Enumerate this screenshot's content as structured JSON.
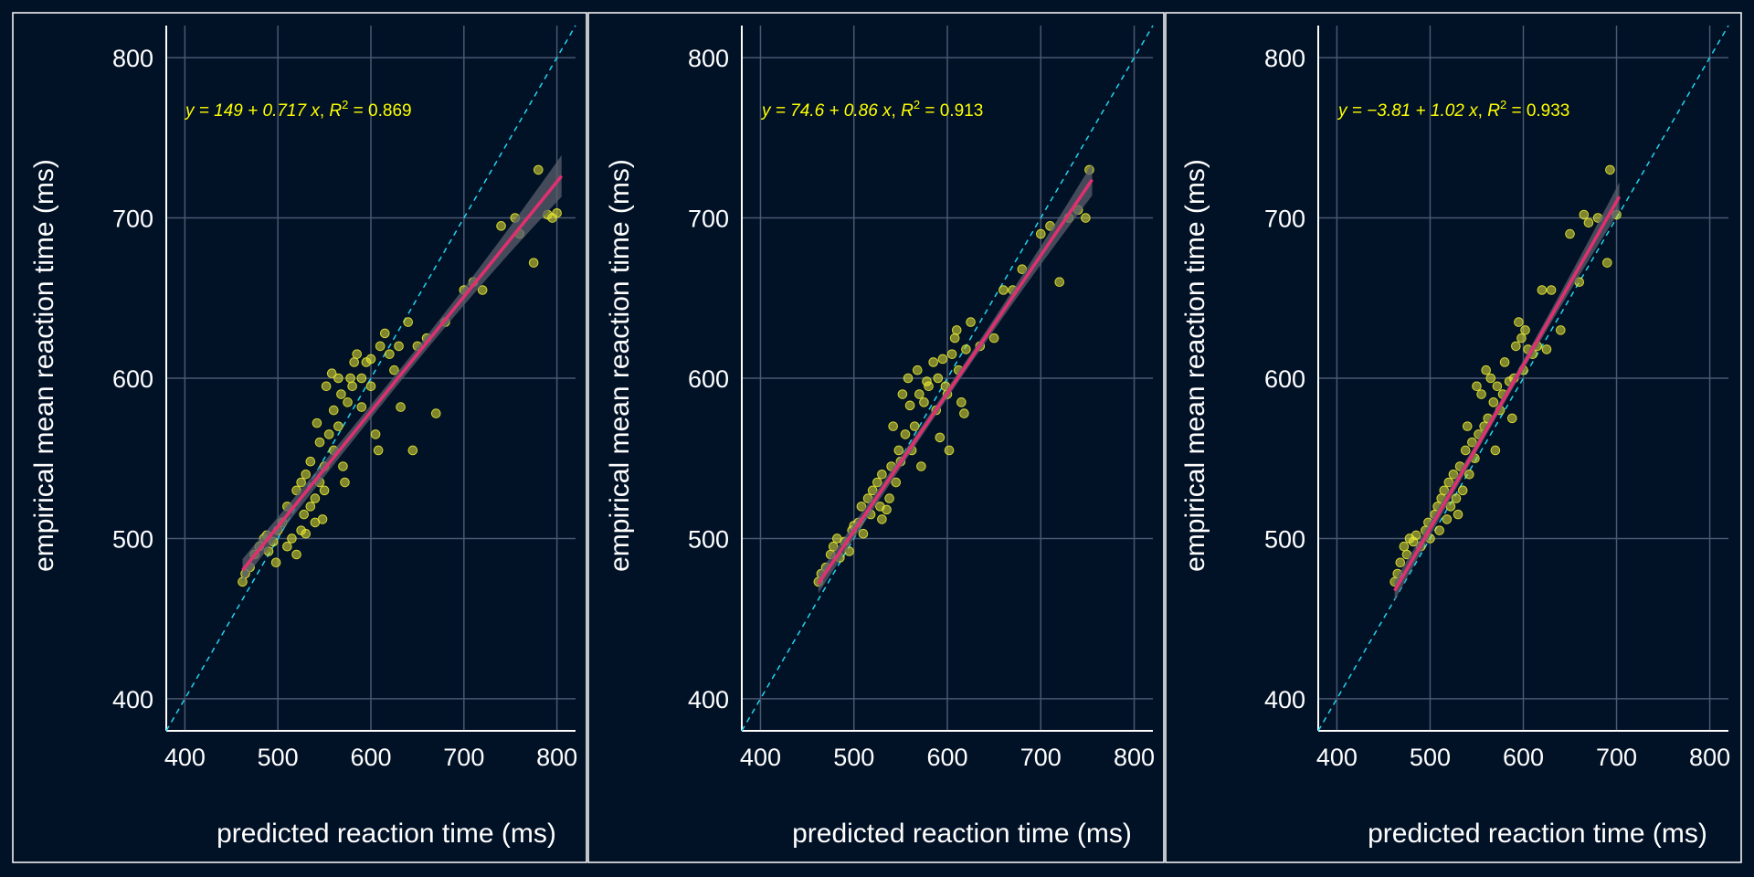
{
  "colors": {
    "background": "#011126",
    "border": "#ffffff",
    "grid": "#4a5870",
    "axis": "#ffffff",
    "text": "#ffffff",
    "points": "#e6e632",
    "fit_line": "#e0306f",
    "confidence_band": "#5a5f6e",
    "identity_line": "#22d3ee",
    "equation": "#ffff00"
  },
  "chart_data": [
    {
      "type": "scatter",
      "xlabel": "predicted reaction time (ms)",
      "ylabel": "empirical mean reaction time (ms)",
      "xlim": [
        380,
        820
      ],
      "ylim": [
        380,
        820
      ],
      "xticks": [
        400,
        500,
        600,
        700,
        800
      ],
      "yticks": [
        400,
        500,
        600,
        700,
        800
      ],
      "grid": true,
      "equation": {
        "prefix": "y = 149 + 0.717 ",
        "var": "x",
        "r2_label": "R",
        "r2_exp": "2",
        "r2_value": " = 0.869"
      },
      "fit": {
        "intercept": 149,
        "slope": 0.717,
        "x_range": [
          462,
          805
        ],
        "band_halfwidth": [
          7,
          4,
          13
        ]
      },
      "identity_line": true,
      "points": [
        [
          462,
          473
        ],
        [
          465,
          478
        ],
        [
          470,
          482
        ],
        [
          475,
          490
        ],
        [
          480,
          495
        ],
        [
          485,
          500
        ],
        [
          488,
          502
        ],
        [
          490,
          492
        ],
        [
          495,
          498
        ],
        [
          498,
          485
        ],
        [
          500,
          505
        ],
        [
          505,
          510
        ],
        [
          510,
          495
        ],
        [
          510,
          520
        ],
        [
          515,
          500
        ],
        [
          520,
          490
        ],
        [
          520,
          530
        ],
        [
          525,
          505
        ],
        [
          525,
          535
        ],
        [
          528,
          515
        ],
        [
          530,
          540
        ],
        [
          530,
          503
        ],
        [
          535,
          520
        ],
        [
          535,
          548
        ],
        [
          540,
          525
        ],
        [
          540,
          510
        ],
        [
          542,
          572
        ],
        [
          545,
          560
        ],
        [
          545,
          535
        ],
        [
          548,
          512
        ],
        [
          550,
          530
        ],
        [
          550,
          545
        ],
        [
          552,
          595
        ],
        [
          555,
          565
        ],
        [
          558,
          603
        ],
        [
          560,
          580
        ],
        [
          560,
          555
        ],
        [
          565,
          570
        ],
        [
          565,
          600
        ],
        [
          568,
          590
        ],
        [
          570,
          545
        ],
        [
          572,
          535
        ],
        [
          575,
          585
        ],
        [
          578,
          600
        ],
        [
          580,
          595
        ],
        [
          582,
          610
        ],
        [
          585,
          615
        ],
        [
          590,
          600
        ],
        [
          590,
          582
        ],
        [
          595,
          610
        ],
        [
          600,
          612
        ],
        [
          600,
          595
        ],
        [
          605,
          565
        ],
        [
          608,
          555
        ],
        [
          610,
          620
        ],
        [
          615,
          628
        ],
        [
          620,
          615
        ],
        [
          625,
          605
        ],
        [
          630,
          620
        ],
        [
          632,
          582
        ],
        [
          640,
          635
        ],
        [
          645,
          555
        ],
        [
          650,
          620
        ],
        [
          660,
          625
        ],
        [
          670,
          578
        ],
        [
          680,
          635
        ],
        [
          700,
          655
        ],
        [
          710,
          660
        ],
        [
          720,
          655
        ],
        [
          740,
          695
        ],
        [
          755,
          700
        ],
        [
          760,
          690
        ],
        [
          775,
          672
        ],
        [
          780,
          730
        ],
        [
          790,
          702
        ],
        [
          795,
          700
        ],
        [
          800,
          703
        ]
      ]
    },
    {
      "type": "scatter",
      "xlabel": "predicted reaction time (ms)",
      "ylabel": "empirical mean reaction time (ms)",
      "xlim": [
        380,
        820
      ],
      "ylim": [
        380,
        820
      ],
      "xticks": [
        400,
        500,
        600,
        700,
        800
      ],
      "yticks": [
        400,
        500,
        600,
        700,
        800
      ],
      "grid": true,
      "equation": {
        "prefix": "y = 74.6 + 0.86 ",
        "var": "x",
        "r2_label": "R",
        "r2_exp": "2",
        "r2_value": " = 0.913"
      },
      "fit": {
        "intercept": 74.6,
        "slope": 0.86,
        "x_range": [
          462,
          755
        ],
        "band_halfwidth": [
          6,
          3,
          10
        ]
      },
      "identity_line": true,
      "points": [
        [
          462,
          473
        ],
        [
          465,
          478
        ],
        [
          470,
          482
        ],
        [
          475,
          490
        ],
        [
          478,
          495
        ],
        [
          482,
          500
        ],
        [
          485,
          488
        ],
        [
          490,
          498
        ],
        [
          495,
          492
        ],
        [
          498,
          505
        ],
        [
          500,
          508
        ],
        [
          505,
          510
        ],
        [
          508,
          520
        ],
        [
          510,
          503
        ],
        [
          515,
          525
        ],
        [
          518,
          515
        ],
        [
          520,
          530
        ],
        [
          525,
          535
        ],
        [
          528,
          520
        ],
        [
          530,
          540
        ],
        [
          530,
          512
        ],
        [
          535,
          518
        ],
        [
          538,
          525
        ],
        [
          540,
          545
        ],
        [
          542,
          570
        ],
        [
          545,
          535
        ],
        [
          548,
          555
        ],
        [
          550,
          548
        ],
        [
          552,
          590
        ],
        [
          555,
          565
        ],
        [
          558,
          600
        ],
        [
          560,
          583
        ],
        [
          562,
          555
        ],
        [
          565,
          570
        ],
        [
          568,
          605
        ],
        [
          570,
          590
        ],
        [
          572,
          545
        ],
        [
          575,
          585
        ],
        [
          578,
          598
        ],
        [
          580,
          595
        ],
        [
          585,
          610
        ],
        [
          588,
          580
        ],
        [
          590,
          600
        ],
        [
          592,
          563
        ],
        [
          595,
          612
        ],
        [
          598,
          595
        ],
        [
          600,
          590
        ],
        [
          602,
          555
        ],
        [
          605,
          615
        ],
        [
          608,
          625
        ],
        [
          610,
          630
        ],
        [
          612,
          605
        ],
        [
          615,
          585
        ],
        [
          618,
          578
        ],
        [
          620,
          618
        ],
        [
          625,
          635
        ],
        [
          635,
          620
        ],
        [
          650,
          625
        ],
        [
          660,
          655
        ],
        [
          670,
          655
        ],
        [
          680,
          668
        ],
        [
          700,
          690
        ],
        [
          710,
          695
        ],
        [
          720,
          660
        ],
        [
          730,
          700
        ],
        [
          740,
          705
        ],
        [
          748,
          700
        ],
        [
          752,
          730
        ]
      ]
    },
    {
      "type": "scatter",
      "xlabel": "predicted reaction time (ms)",
      "ylabel": "empirical mean reaction time (ms)",
      "xlim": [
        380,
        820
      ],
      "ylim": [
        380,
        820
      ],
      "xticks": [
        400,
        500,
        600,
        700,
        800
      ],
      "yticks": [
        400,
        500,
        600,
        700,
        800
      ],
      "grid": true,
      "equation": {
        "prefix": "y = −3.81 + 1.02 ",
        "var": "x",
        "r2_label": "R",
        "r2_exp": "2",
        "r2_value": " = 0.933"
      },
      "fit": {
        "intercept": -3.81,
        "slope": 1.02,
        "x_range": [
          462,
          703
        ],
        "band_halfwidth": [
          6,
          3,
          9
        ]
      },
      "identity_line": true,
      "points": [
        [
          462,
          473
        ],
        [
          465,
          478
        ],
        [
          468,
          485
        ],
        [
          472,
          495
        ],
        [
          475,
          490
        ],
        [
          478,
          500
        ],
        [
          482,
          498
        ],
        [
          485,
          502
        ],
        [
          490,
          495
        ],
        [
          495,
          505
        ],
        [
          498,
          510
        ],
        [
          500,
          500
        ],
        [
          505,
          515
        ],
        [
          508,
          520
        ],
        [
          510,
          505
        ],
        [
          512,
          525
        ],
        [
          515,
          530
        ],
        [
          518,
          512
        ],
        [
          520,
          535
        ],
        [
          522,
          520
        ],
        [
          525,
          540
        ],
        [
          528,
          525
        ],
        [
          530,
          515
        ],
        [
          532,
          545
        ],
        [
          535,
          530
        ],
        [
          538,
          555
        ],
        [
          540,
          570
        ],
        [
          542,
          540
        ],
        [
          545,
          560
        ],
        [
          548,
          550
        ],
        [
          550,
          595
        ],
        [
          552,
          565
        ],
        [
          555,
          590
        ],
        [
          558,
          570
        ],
        [
          560,
          605
        ],
        [
          562,
          575
        ],
        [
          565,
          600
        ],
        [
          568,
          585
        ],
        [
          570,
          555
        ],
        [
          572,
          595
        ],
        [
          575,
          580
        ],
        [
          578,
          590
        ],
        [
          580,
          610
        ],
        [
          585,
          598
        ],
        [
          588,
          575
        ],
        [
          590,
          600
        ],
        [
          592,
          620
        ],
        [
          595,
          635
        ],
        [
          598,
          625
        ],
        [
          600,
          605
        ],
        [
          602,
          630
        ],
        [
          605,
          618
        ],
        [
          610,
          615
        ],
        [
          615,
          620
        ],
        [
          620,
          655
        ],
        [
          625,
          618
        ],
        [
          630,
          655
        ],
        [
          640,
          630
        ],
        [
          650,
          690
        ],
        [
          660,
          660
        ],
        [
          665,
          702
        ],
        [
          670,
          697
        ],
        [
          680,
          700
        ],
        [
          690,
          672
        ],
        [
          693,
          730
        ],
        [
          700,
          702
        ]
      ]
    }
  ]
}
